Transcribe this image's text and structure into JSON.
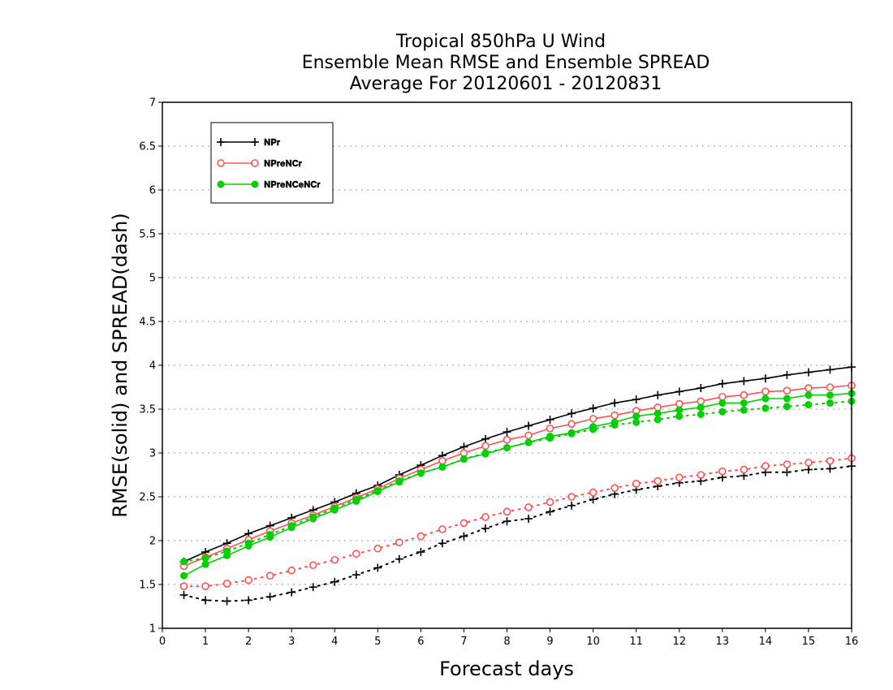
{
  "chart_data": {
    "type": "line",
    "title_lines": [
      "Tropical 850hPa U Wind",
      "Ensemble Mean RMSE and Ensemble SPREAD",
      "Average For 20120601 - 20120831"
    ],
    "xlabel": "Forecast days",
    "ylabel": "RMSE(solid) and SPREAD(dash)",
    "xlim": [
      0,
      16
    ],
    "ylim": [
      1,
      7
    ],
    "x_ticks": [
      "0",
      "1",
      "2",
      "3",
      "4",
      "5",
      "6",
      "7",
      "8",
      "9",
      "10",
      "11",
      "12",
      "13",
      "14",
      "15",
      "16"
    ],
    "y_ticks": [
      "1",
      "1.5",
      "2",
      "2.5",
      "3",
      "3.5",
      "4",
      "4.5",
      "5",
      "5.5",
      "6",
      "6.5",
      "7"
    ],
    "grid": "horizontal dotted",
    "legend_position": "top-left",
    "x": [
      0.5,
      1,
      1.5,
      2,
      2.5,
      3,
      3.5,
      4,
      4.5,
      5,
      5.5,
      6,
      6.5,
      7,
      7.5,
      8,
      8.5,
      9,
      9.5,
      10,
      10.5,
      11,
      11.5,
      12,
      12.5,
      13,
      13.5,
      14,
      14.5,
      15,
      15.5,
      16
    ],
    "series": [
      {
        "label": "𝐍𝐏𝐫",
        "color": "#000000",
        "marker": "plus",
        "rmse": [
          1.76,
          1.87,
          1.97,
          2.08,
          2.17,
          2.26,
          2.35,
          2.44,
          2.54,
          2.63,
          2.75,
          2.86,
          2.97,
          3.07,
          3.16,
          3.24,
          3.31,
          3.38,
          3.45,
          3.51,
          3.57,
          3.61,
          3.66,
          3.7,
          3.74,
          3.79,
          3.82,
          3.85,
          3.89,
          3.92,
          3.95,
          3.98
        ],
        "spread": [
          1.38,
          1.32,
          1.31,
          1.32,
          1.36,
          1.41,
          1.47,
          1.53,
          1.61,
          1.69,
          1.79,
          1.87,
          1.97,
          2.05,
          2.14,
          2.22,
          2.25,
          2.33,
          2.4,
          2.47,
          2.53,
          2.58,
          2.62,
          2.66,
          2.68,
          2.72,
          2.74,
          2.78,
          2.78,
          2.81,
          2.82,
          2.85
        ]
      },
      {
        "label": "𝐍𝐏𝐫𝐞𝐍𝐂𝐫",
        "color": "#ff5050",
        "marker": "open-circle",
        "rmse": [
          1.71,
          1.81,
          1.91,
          2.01,
          2.11,
          2.2,
          2.29,
          2.39,
          2.49,
          2.59,
          2.71,
          2.81,
          2.91,
          3.0,
          3.08,
          3.15,
          3.2,
          3.28,
          3.33,
          3.39,
          3.43,
          3.48,
          3.52,
          3.56,
          3.59,
          3.64,
          3.66,
          3.7,
          3.71,
          3.74,
          3.75,
          3.77
        ],
        "spread": [
          1.48,
          1.48,
          1.51,
          1.55,
          1.6,
          1.66,
          1.72,
          1.78,
          1.85,
          1.91,
          1.98,
          2.05,
          2.13,
          2.2,
          2.27,
          2.33,
          2.38,
          2.44,
          2.5,
          2.55,
          2.6,
          2.65,
          2.68,
          2.72,
          2.75,
          2.79,
          2.81,
          2.85,
          2.87,
          2.89,
          2.91,
          2.94
        ]
      },
      {
        "label": "𝐍𝐏𝐫𝐞𝐍𝐂𝐞𝐍𝐂𝐫",
        "color": "#00d000",
        "marker": "filled-circle",
        "rmse": [
          1.6,
          1.73,
          1.83,
          1.94,
          2.04,
          2.15,
          2.25,
          2.35,
          2.45,
          2.56,
          2.67,
          2.77,
          2.84,
          2.93,
          2.99,
          3.06,
          3.12,
          3.19,
          3.23,
          3.3,
          3.35,
          3.42,
          3.45,
          3.49,
          3.52,
          3.57,
          3.57,
          3.62,
          3.62,
          3.66,
          3.66,
          3.68
        ],
        "spread": [
          1.76,
          1.8,
          1.88,
          1.97,
          2.07,
          2.17,
          2.27,
          2.37,
          2.47,
          2.57,
          2.68,
          2.77,
          2.84,
          2.93,
          3.0,
          3.06,
          3.12,
          3.17,
          3.22,
          3.27,
          3.32,
          3.35,
          3.38,
          3.42,
          3.44,
          3.47,
          3.49,
          3.51,
          3.53,
          3.55,
          3.57,
          3.59
        ]
      }
    ]
  }
}
